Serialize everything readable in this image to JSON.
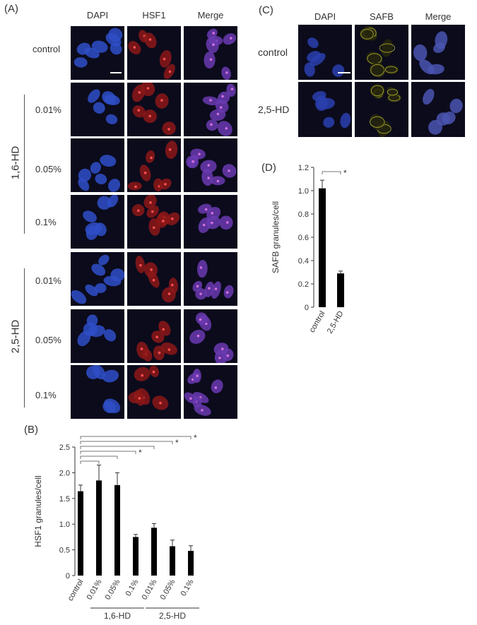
{
  "figure": {
    "panel_a": {
      "label": "(A)",
      "columns": [
        "DAPI",
        "HSF1",
        "Merge"
      ],
      "rows": [
        "control",
        "0.01%",
        "0.05%",
        "0.1%",
        "0.01%",
        "0.05%",
        "0.1%"
      ],
      "groups": [
        "1,6-HD",
        "2,5-HD"
      ]
    },
    "panel_b": {
      "label": "(B)"
    },
    "panel_c": {
      "label": "(C)",
      "columns": [
        "DAPI",
        "SAFB",
        "Merge"
      ],
      "rows": [
        "control",
        "2,5-HD"
      ]
    },
    "panel_d": {
      "label": "(D)"
    }
  },
  "chart_data": [
    {
      "panel": "(B)",
      "type": "bar",
      "ylabel": "HSF1 granules/cell",
      "ylim": [
        0,
        2.5
      ],
      "yticks": [
        "0",
        "0.5",
        "1.0",
        "1.5",
        "2.0",
        "2.5"
      ],
      "categories": [
        "control",
        "0.01%",
        "0.05%",
        "0.1%",
        "0.01%",
        "0.05%",
        "0.1%"
      ],
      "values": [
        1.64,
        1.85,
        1.76,
        0.75,
        0.93,
        0.57,
        0.48
      ],
      "errors": [
        0.12,
        0.3,
        0.24,
        0.05,
        0.08,
        0.12,
        0.1
      ],
      "groups": [
        {
          "label": "1,6-HD",
          "range": [
            1,
            3
          ]
        },
        {
          "label": "2,5-HD",
          "range": [
            4,
            6
          ]
        }
      ],
      "significance": [
        {
          "from": 0,
          "to": 1,
          "mark": ""
        },
        {
          "from": 0,
          "to": 2,
          "mark": ""
        },
        {
          "from": 0,
          "to": 3,
          "mark": "*"
        },
        {
          "from": 0,
          "to": 4,
          "mark": ""
        },
        {
          "from": 0,
          "to": 5,
          "mark": "*"
        },
        {
          "from": 0,
          "to": 6,
          "mark": "*"
        }
      ],
      "color": "#000000"
    },
    {
      "panel": "(D)",
      "type": "bar",
      "ylabel": "SAFB granules/cell",
      "ylim": [
        0,
        1.2
      ],
      "yticks": [
        "0",
        "0.2",
        "0.4",
        "0.6",
        "0.8",
        "1.0",
        "1.2"
      ],
      "categories": [
        "control",
        "2,5-HD"
      ],
      "values": [
        1.02,
        0.29
      ],
      "errors": [
        0.07,
        0.02
      ],
      "significance": [
        {
          "from": 0,
          "to": 1,
          "mark": "*"
        }
      ],
      "color": "#000000"
    }
  ],
  "colors": {
    "dapi": "#1e3a8a",
    "hsf1": "#a31515",
    "safb": "#c8c83a",
    "merge": "#6a3aa0",
    "background": "#0a0a18"
  }
}
